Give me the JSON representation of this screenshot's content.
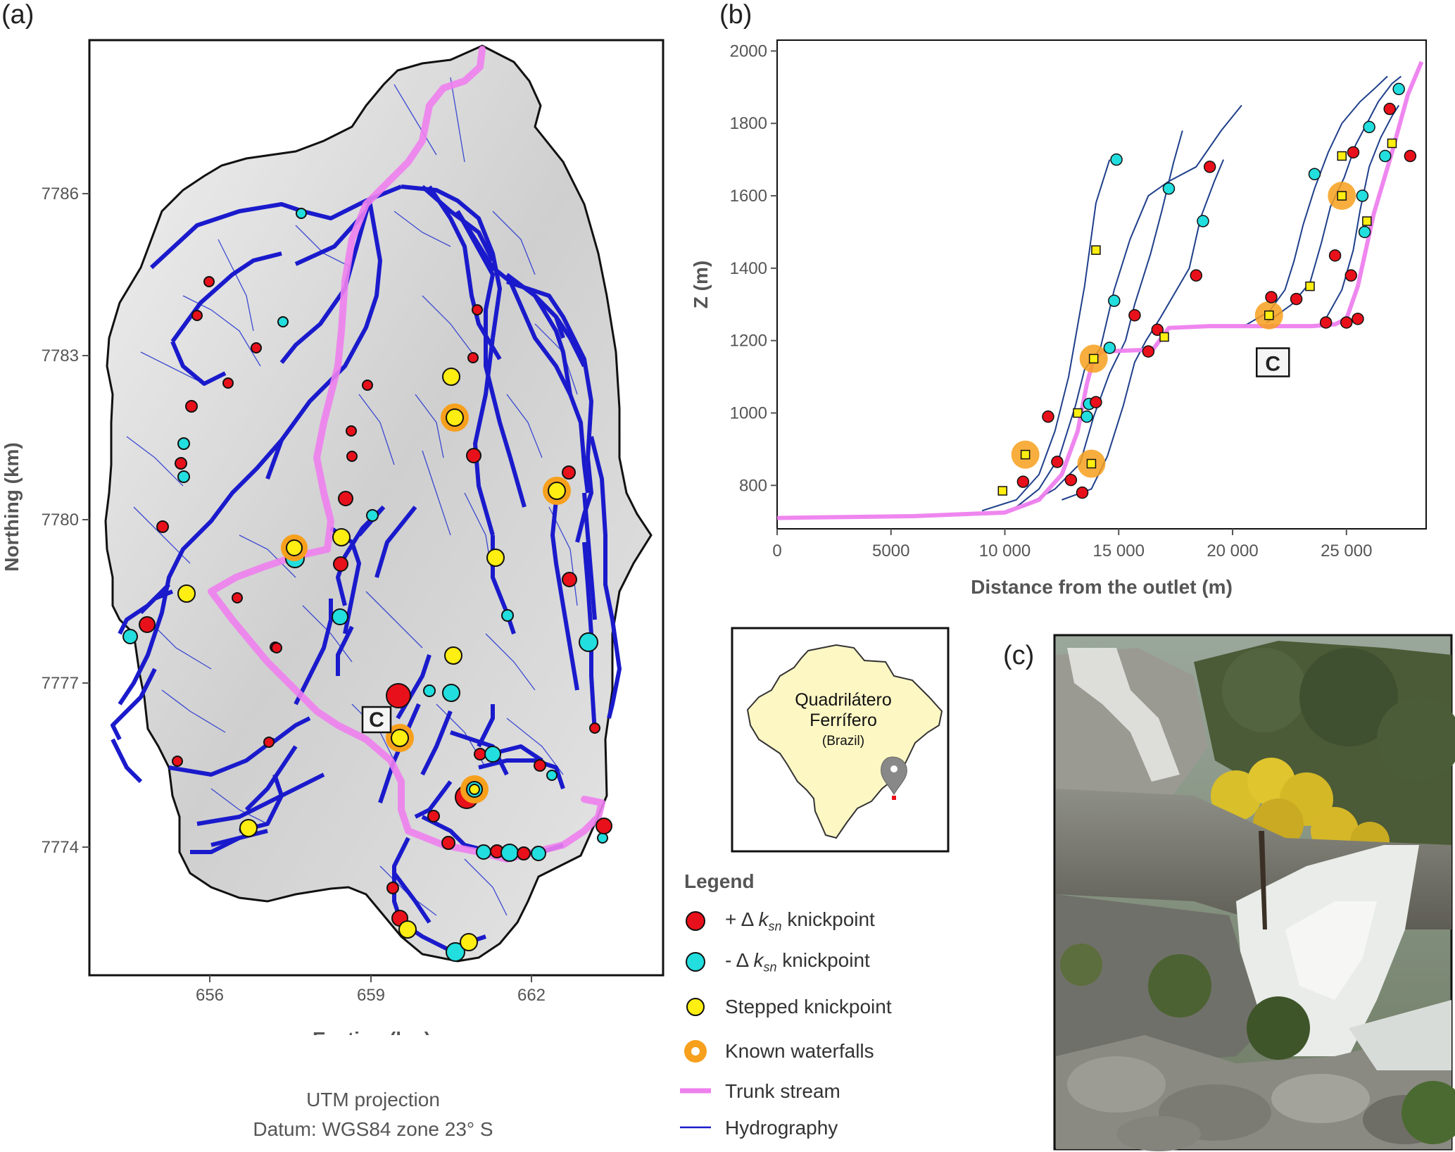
{
  "panels": {
    "a": "(a)",
    "b": "(b)",
    "c": "(c)"
  },
  "map": {
    "xlabel": "Easting (km)",
    "ylabel": "Northing (km)",
    "x_ticks": [
      "656",
      "659",
      "662"
    ],
    "y_ticks": [
      "7786",
      "7783",
      "7780",
      "7777",
      "7774"
    ],
    "photo_marker": "C",
    "projection_line1": "UTM projection",
    "projection_line2": "Datum: WGS84 zone 23° S"
  },
  "inset": {
    "region_line1": "Quadrilátero",
    "region_line2": "Ferrífero",
    "country": "(Brazil)"
  },
  "legend": {
    "title": "Legend",
    "items": [
      {
        "label_pre": "+ Δ ",
        "label_k": "k",
        "label_sub": "sn",
        "label_post": " knickpoint",
        "color": "#e8101a"
      },
      {
        "label_pre": "- Δ ",
        "label_k": "k",
        "label_sub": "sn",
        "label_post": " knickpoint",
        "color": "#22dede"
      },
      {
        "label": "Stepped knickpoint",
        "color": "#ffee11"
      },
      {
        "label": "Known waterfalls",
        "color": "#f7a01c"
      },
      {
        "label": "Trunk stream",
        "color": "#ee80ee"
      },
      {
        "label": "Hydrography",
        "color": "#1a1acc"
      }
    ]
  },
  "chart_data": {
    "type": "line",
    "xlabel": "Distance from the outlet (m)",
    "ylabel": "Z (m)",
    "xlim": [
      0,
      28500
    ],
    "ylim": [
      680,
      2030
    ],
    "x_ticks": [
      0,
      5000,
      10000,
      15000,
      20000,
      25000
    ],
    "x_tick_labels": [
      "0",
      "5000",
      "10 000",
      "15 000",
      "20 000",
      "25 000"
    ],
    "y_ticks": [
      800,
      1000,
      1200,
      1400,
      1600,
      1800,
      2000
    ],
    "photo_marker": "C",
    "trunk": [
      [
        0,
        710
      ],
      [
        6000,
        715
      ],
      [
        10000,
        725
      ],
      [
        11500,
        760
      ],
      [
        12500,
        830
      ],
      [
        13200,
        950
      ],
      [
        13600,
        1080
      ],
      [
        13900,
        1150
      ],
      [
        14300,
        1170
      ],
      [
        16500,
        1175
      ],
      [
        17200,
        1235
      ],
      [
        19000,
        1240
      ],
      [
        23500,
        1240
      ],
      [
        24500,
        1245
      ],
      [
        25000,
        1260
      ],
      [
        25500,
        1350
      ],
      [
        26200,
        1550
      ],
      [
        27000,
        1720
      ],
      [
        27700,
        1880
      ],
      [
        28300,
        1970
      ]
    ],
    "tributaries": [
      [
        [
          9000,
          730
        ],
        [
          10500,
          760
        ],
        [
          11500,
          830
        ],
        [
          12200,
          950
        ],
        [
          12800,
          1100
        ],
        [
          13500,
          1350
        ],
        [
          14000,
          1580
        ],
        [
          14600,
          1700
        ]
      ],
      [
        [
          10500,
          740
        ],
        [
          11500,
          790
        ],
        [
          12400,
          880
        ],
        [
          13100,
          1020
        ],
        [
          13500,
          1120
        ],
        [
          14200,
          1180
        ],
        [
          14800,
          1340
        ],
        [
          15500,
          1480
        ],
        [
          16300,
          1600
        ],
        [
          17200,
          1640
        ],
        [
          18400,
          1680
        ],
        [
          19500,
          1780
        ],
        [
          20400,
          1850
        ]
      ],
      [
        [
          10800,
          740
        ],
        [
          12200,
          790
        ],
        [
          13300,
          860
        ],
        [
          13900,
          990
        ],
        [
          14600,
          1110
        ],
        [
          15300,
          1200
        ],
        [
          15700,
          1300
        ],
        [
          16400,
          1440
        ],
        [
          16900,
          1560
        ],
        [
          17400,
          1690
        ],
        [
          17800,
          1780
        ]
      ],
      [
        [
          12500,
          760
        ],
        [
          13800,
          790
        ],
        [
          14500,
          880
        ],
        [
          15200,
          1020
        ],
        [
          15700,
          1140
        ],
        [
          16200,
          1200
        ],
        [
          16800,
          1260
        ],
        [
          18100,
          1400
        ],
        [
          18600,
          1540
        ],
        [
          19200,
          1640
        ],
        [
          19600,
          1700
        ]
      ],
      [
        [
          20500,
          1240
        ],
        [
          21600,
          1280
        ],
        [
          22300,
          1340
        ],
        [
          22700,
          1420
        ],
        [
          23100,
          1520
        ],
        [
          23600,
          1620
        ],
        [
          24200,
          1720
        ],
        [
          24800,
          1800
        ],
        [
          25600,
          1860
        ],
        [
          26300,
          1900
        ],
        [
          26800,
          1930
        ]
      ],
      [
        [
          21500,
          1250
        ],
        [
          22600,
          1300
        ],
        [
          23400,
          1360
        ],
        [
          23900,
          1470
        ],
        [
          24300,
          1570
        ],
        [
          24900,
          1650
        ],
        [
          25400,
          1740
        ],
        [
          25900,
          1800
        ],
        [
          26400,
          1860
        ],
        [
          27000,
          1910
        ],
        [
          27400,
          1930
        ]
      ],
      [
        [
          24000,
          1250
        ],
        [
          24800,
          1340
        ],
        [
          25300,
          1450
        ],
        [
          25600,
          1560
        ],
        [
          26000,
          1680
        ],
        [
          26500,
          1760
        ],
        [
          27000,
          1820
        ],
        [
          27300,
          1850
        ]
      ]
    ],
    "knickpoints": [
      {
        "x": 9900,
        "z": 785,
        "kind": "stepped"
      },
      {
        "x": 10900,
        "z": 885,
        "kind": "stepped",
        "waterfall": true
      },
      {
        "x": 10800,
        "z": 810,
        "kind": "pos"
      },
      {
        "x": 11900,
        "z": 990,
        "kind": "pos"
      },
      {
        "x": 12300,
        "z": 865,
        "kind": "pos"
      },
      {
        "x": 12900,
        "z": 815,
        "kind": "pos"
      },
      {
        "x": 13200,
        "z": 1000,
        "kind": "stepped"
      },
      {
        "x": 13400,
        "z": 780,
        "kind": "pos"
      },
      {
        "x": 13600,
        "z": 990,
        "kind": "neg"
      },
      {
        "x": 13700,
        "z": 1025,
        "kind": "neg"
      },
      {
        "x": 13800,
        "z": 860,
        "kind": "stepped",
        "waterfall": true
      },
      {
        "x": 13900,
        "z": 1150,
        "kind": "stepped",
        "waterfall": true
      },
      {
        "x": 14000,
        "z": 1030,
        "kind": "pos"
      },
      {
        "x": 14000,
        "z": 1450,
        "kind": "stepped"
      },
      {
        "x": 14600,
        "z": 1180,
        "kind": "neg"
      },
      {
        "x": 14800,
        "z": 1310,
        "kind": "neg"
      },
      {
        "x": 14900,
        "z": 1700,
        "kind": "neg"
      },
      {
        "x": 15700,
        "z": 1270,
        "kind": "pos"
      },
      {
        "x": 16300,
        "z": 1170,
        "kind": "pos"
      },
      {
        "x": 16700,
        "z": 1230,
        "kind": "pos"
      },
      {
        "x": 17000,
        "z": 1210,
        "kind": "stepped"
      },
      {
        "x": 17200,
        "z": 1620,
        "kind": "neg"
      },
      {
        "x": 18400,
        "z": 1380,
        "kind": "pos"
      },
      {
        "x": 18700,
        "z": 1530,
        "kind": "neg"
      },
      {
        "x": 19000,
        "z": 1680,
        "kind": "pos"
      },
      {
        "x": 21600,
        "z": 1270,
        "kind": "stepped",
        "waterfall": true
      },
      {
        "x": 21700,
        "z": 1320,
        "kind": "pos"
      },
      {
        "x": 22800,
        "z": 1315,
        "kind": "pos"
      },
      {
        "x": 23400,
        "z": 1350,
        "kind": "stepped"
      },
      {
        "x": 23600,
        "z": 1660,
        "kind": "neg"
      },
      {
        "x": 24100,
        "z": 1250,
        "kind": "pos"
      },
      {
        "x": 24500,
        "z": 1435,
        "kind": "pos"
      },
      {
        "x": 24800,
        "z": 1710,
        "kind": "stepped"
      },
      {
        "x": 24800,
        "z": 1600,
        "kind": "stepped",
        "waterfall": true
      },
      {
        "x": 25000,
        "z": 1250,
        "kind": "pos"
      },
      {
        "x": 25200,
        "z": 1380,
        "kind": "pos"
      },
      {
        "x": 25300,
        "z": 1720,
        "kind": "pos"
      },
      {
        "x": 25500,
        "z": 1260,
        "kind": "pos"
      },
      {
        "x": 25700,
        "z": 1600,
        "kind": "neg"
      },
      {
        "x": 25800,
        "z": 1500,
        "kind": "neg"
      },
      {
        "x": 25900,
        "z": 1530,
        "kind": "stepped"
      },
      {
        "x": 26000,
        "z": 1790,
        "kind": "neg"
      },
      {
        "x": 26700,
        "z": 1710,
        "kind": "neg"
      },
      {
        "x": 26900,
        "z": 1840,
        "kind": "pos"
      },
      {
        "x": 27000,
        "z": 1745,
        "kind": "stepped"
      },
      {
        "x": 27300,
        "z": 1895,
        "kind": "neg"
      },
      {
        "x": 27800,
        "z": 1710,
        "kind": "pos"
      }
    ]
  },
  "colors": {
    "pos": "#e8101a",
    "neg": "#22dede",
    "stepped": "#ffee11",
    "waterfall": "#f7a01c",
    "trunk": "#ee80ee",
    "hydro": "#1a1acc",
    "basin": "#d6d6d6",
    "inset_land": "#fdf7c4"
  }
}
